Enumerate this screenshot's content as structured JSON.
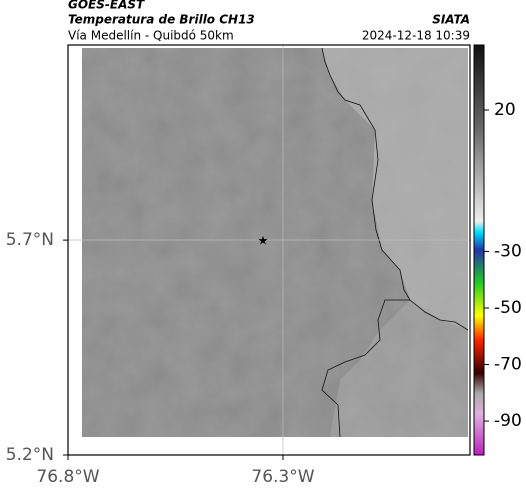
{
  "header": {
    "title": "GOES-EAST",
    "subtitle": "Temperatura de Brillo CH13",
    "route": "Vía Medellín - Quibdó 50km",
    "source": "SIATA",
    "datetime": "2024-12-18 10:39"
  },
  "map": {
    "lon_range": [
      -76.8,
      -75.865
    ],
    "lat_range": [
      5.2,
      6.154
    ],
    "lat_ticks": [
      {
        "value": 5.7,
        "label": "5.7°N"
      },
      {
        "value": 5.2,
        "label": "5.2°N"
      }
    ],
    "lon_ticks": [
      {
        "value": -76.8,
        "label": "76.8°W"
      },
      {
        "value": -76.3,
        "label": "76.3°W"
      }
    ]
  },
  "colorbar": {
    "range": [
      43,
      -102
    ],
    "ticks": [
      20,
      -30,
      -50,
      -70,
      -90
    ]
  }
}
